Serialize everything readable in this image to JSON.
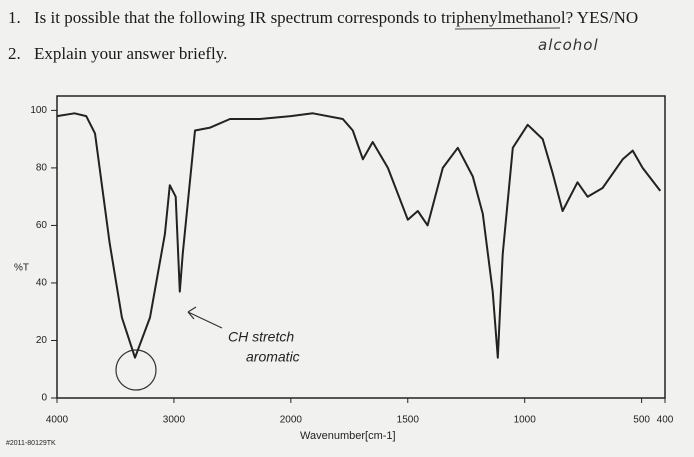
{
  "questions": [
    {
      "number": "1.",
      "text": "Is it possible that the following IR spectrum corresponds to triphenylmethanol? YES/NO"
    },
    {
      "number": "2.",
      "text": "Explain your answer briefly."
    }
  ],
  "handwritten_note": "alcohol",
  "code": "#2011-80129TK",
  "chart_data": {
    "type": "line",
    "y_label": "%T",
    "x_label": "Wavenumber[cm-1]",
    "annotations": [
      "CH stretch",
      "aromatic"
    ],
    "x": [
      4000,
      3850,
      3750,
      3675,
      3550,
      3445,
      3333,
      3205,
      3077,
      3035,
      2985,
      2950,
      2925,
      2820,
      2690,
      2520,
      2265,
      2000,
      1906,
      1778,
      1735,
      1692,
      1650,
      1585,
      1500,
      1457,
      1415,
      1350,
      1286,
      1222,
      1179,
      1137,
      1115,
      1094,
      1051,
      987,
      923,
      880,
      838,
      774,
      731,
      667,
      581,
      538,
      496,
      420
    ],
    "values": [
      98,
      99,
      98,
      92,
      54,
      28,
      14,
      28,
      57,
      74,
      70,
      37,
      50,
      93,
      94,
      97,
      97,
      98,
      99,
      97,
      93,
      83,
      89,
      80,
      62,
      65,
      60,
      80,
      87,
      77,
      64,
      37,
      14,
      50,
      87,
      95,
      90,
      78,
      65,
      75,
      70,
      73,
      83,
      86,
      80,
      72
    ],
    "color": "#222222",
    "xlim": [
      4000,
      400
    ],
    "x_scale_break": 2000,
    "xticks": [
      {
        "value": 4000,
        "label": "4000"
      },
      3000,
      2000,
      1500,
      1000,
      500,
      400
    ],
    "ylim": [
      0,
      105
    ],
    "yticks": [
      0,
      20,
      40,
      60,
      80,
      100
    ]
  }
}
